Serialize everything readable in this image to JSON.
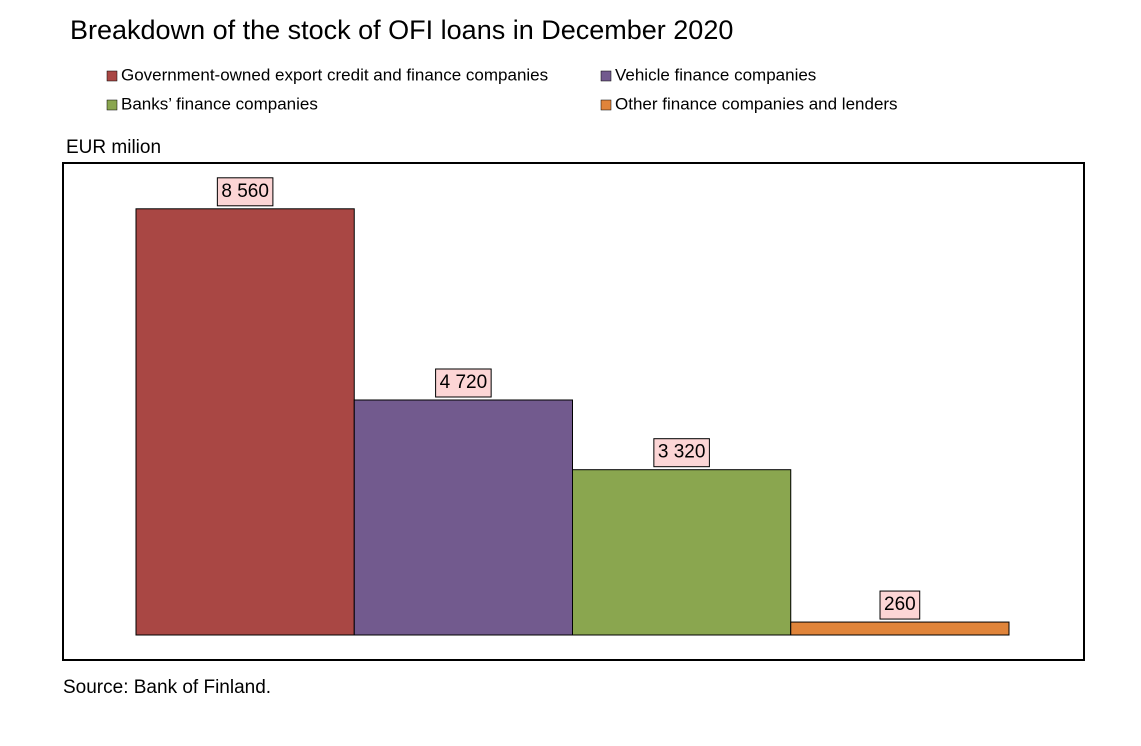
{
  "chart_data": {
    "type": "bar",
    "title": "Breakdown of the stock of OFI loans in December 2020",
    "y_label": "EUR milion",
    "source": "Source: Bank of Finland.",
    "ylim": [
      0,
      9500
    ],
    "series": [
      {
        "name": "Government-owned export credit and finance companies",
        "color": "#a94744",
        "values": [
          8560
        ],
        "value_labels": [
          "8 560"
        ]
      },
      {
        "name": "Vehicle finance companies",
        "color": "#725a8e",
        "values": [
          4720
        ],
        "value_labels": [
          "4 720"
        ]
      },
      {
        "name": "Banks’ finance companies",
        "color": "#8aa64f",
        "values": [
          3320
        ],
        "value_labels": [
          "3 320"
        ]
      },
      {
        "name": "Other finance companies and lenders",
        "color": "#e0843a",
        "values": [
          260
        ],
        "value_labels": [
          "260"
        ]
      }
    ]
  }
}
